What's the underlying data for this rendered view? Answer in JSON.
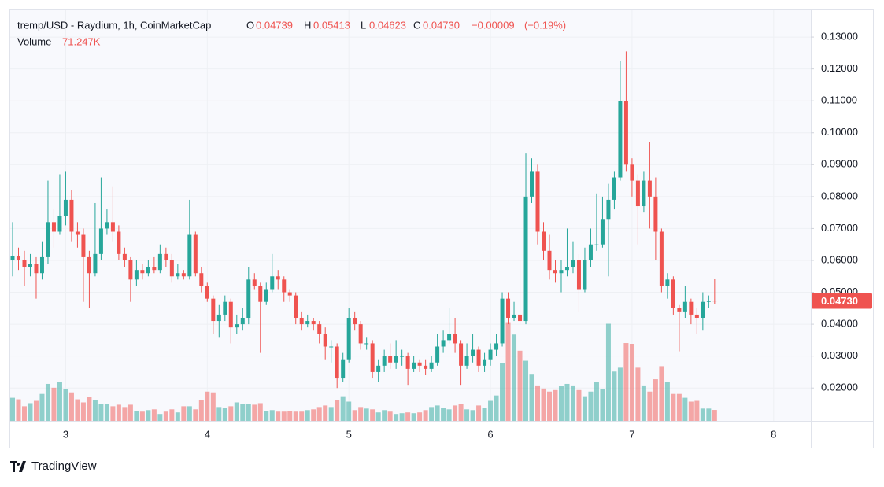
{
  "brand": "TradingView",
  "chart_data": {
    "type": "candlestick",
    "title": "tremp/USD - Raydium, 1h, CoinMarketCap",
    "legend": [
      {
        "key": "O",
        "value": 0.04739,
        "label": "0.04739"
      },
      {
        "key": "H",
        "value": 0.05413,
        "label": "0.05413"
      },
      {
        "key": "L",
        "value": 0.04623,
        "label": "0.04623"
      },
      {
        "key": "C",
        "value": 0.0473,
        "label": "0.04730"
      }
    ],
    "change": {
      "value": -9e-05,
      "label": "−0.00009"
    },
    "change_pct": {
      "value": -0.19,
      "label": "(−0.19%)"
    },
    "volume_title": "Volume",
    "volume_last": {
      "value": 71.247,
      "label": "71.247K"
    },
    "last_price": {
      "value": 0.0473,
      "label": "0.04730"
    },
    "up_color": "#26a69a",
    "down_color": "#ef5350",
    "grid": true,
    "xlim": [
      -0.4,
      135.3
    ],
    "xticks": [
      {
        "value": 9,
        "label": "3"
      },
      {
        "value": 33,
        "label": "4"
      },
      {
        "value": 57,
        "label": "5"
      },
      {
        "value": 81,
        "label": "6"
      },
      {
        "value": 105,
        "label": "7"
      },
      {
        "value": 129,
        "label": "8"
      }
    ],
    "ylim": [
      0.0097,
      0.1384
    ],
    "yticks": [
      {
        "value": 0.02,
        "label": "0.02000"
      },
      {
        "value": 0.03,
        "label": "0.03000"
      },
      {
        "value": 0.04,
        "label": "0.04000"
      },
      {
        "value": 0.05,
        "label": "0.05000"
      },
      {
        "value": 0.06,
        "label": "0.06000"
      },
      {
        "value": 0.07,
        "label": "0.07000"
      },
      {
        "value": 0.08,
        "label": "0.08000"
      },
      {
        "value": 0.09,
        "label": "0.09000"
      },
      {
        "value": 0.1,
        "label": "0.10000"
      },
      {
        "value": 0.11,
        "label": "0.11000"
      },
      {
        "value": 0.12,
        "label": "0.12000"
      },
      {
        "value": 0.13,
        "label": "0.13000"
      }
    ],
    "volume_lim": [
      0,
      1000
    ],
    "open": [
      0.06,
      0.0613,
      0.06,
      0.058,
      0.059,
      0.056,
      0.061,
      0.072,
      0.069,
      0.074,
      0.079,
      0.069,
      0.068,
      0.061,
      0.056,
      0.062,
      0.07,
      0.072,
      0.069,
      0.062,
      0.06,
      0.054,
      0.057,
      0.056,
      0.058,
      0.057,
      0.062,
      0.06,
      0.055,
      0.056,
      0.055,
      0.068,
      0.056,
      0.052,
      0.048,
      0.041,
      0.043,
      0.047,
      0.039,
      0.04,
      0.042,
      0.054,
      0.052,
      0.047,
      0.051,
      0.055,
      0.054,
      0.05,
      0.049,
      0.042,
      0.04,
      0.041,
      0.04,
      0.037,
      0.033,
      0.033,
      0.023,
      0.029,
      0.042,
      0.04,
      0.034,
      0.034,
      0.025,
      0.027,
      0.03,
      0.028,
      0.03,
      0.03,
      0.026,
      0.028,
      0.027,
      0.026,
      0.028,
      0.033,
      0.035,
      0.037,
      0.034,
      0.027,
      0.03,
      0.032,
      0.027,
      0.029,
      0.032,
      0.034,
      0.048,
      0.042,
      0.043,
      0.041,
      0.08,
      0.088,
      0.069,
      0.063,
      0.057,
      0.056,
      0.057,
      0.058,
      0.06,
      0.051,
      0.06,
      0.065,
      0.065,
      0.073,
      0.079,
      0.086,
      0.11,
      0.09,
      0.085,
      0.077,
      0.085,
      0.08,
      0.069,
      0.052,
      0.054,
      0.045,
      0.044,
      0.047,
      0.043,
      0.042,
      0.047,
      0.04739
    ],
    "high": [
      0.072,
      0.064,
      0.063,
      0.062,
      0.061,
      0.066,
      0.085,
      0.076,
      0.087,
      0.088,
      0.082,
      0.072,
      0.07,
      0.063,
      0.078,
      0.086,
      0.076,
      0.083,
      0.071,
      0.064,
      0.061,
      0.06,
      0.059,
      0.06,
      0.061,
      0.065,
      0.064,
      0.062,
      0.059,
      0.057,
      0.079,
      0.069,
      0.058,
      0.053,
      0.049,
      0.046,
      0.049,
      0.048,
      0.043,
      0.045,
      0.058,
      0.056,
      0.053,
      0.053,
      0.062,
      0.057,
      0.055,
      0.051,
      0.05,
      0.044,
      0.043,
      0.042,
      0.041,
      0.039,
      0.035,
      0.034,
      0.031,
      0.045,
      0.044,
      0.041,
      0.036,
      0.035,
      0.029,
      0.032,
      0.034,
      0.035,
      0.032,
      0.031,
      0.03,
      0.029,
      0.029,
      0.03,
      0.037,
      0.038,
      0.045,
      0.042,
      0.035,
      0.034,
      0.037,
      0.033,
      0.031,
      0.034,
      0.037,
      0.05,
      0.05,
      0.047,
      0.06,
      0.0935,
      0.092,
      0.09,
      0.072,
      0.068,
      0.06,
      0.06,
      0.07,
      0.066,
      0.062,
      0.064,
      0.07,
      0.081,
      0.08,
      0.084,
      0.088,
      0.1225,
      0.1255,
      0.092,
      0.087,
      0.088,
      0.097,
      0.086,
      0.07,
      0.056,
      0.055,
      0.046,
      0.052,
      0.048,
      0.045,
      0.05,
      0.049,
      0.05413
    ],
    "low": [
      0.055,
      0.057,
      0.052,
      0.055,
      0.048,
      0.054,
      0.059,
      0.064,
      0.068,
      0.071,
      0.066,
      0.064,
      0.047,
      0.045,
      0.055,
      0.06,
      0.068,
      0.066,
      0.06,
      0.058,
      0.047,
      0.052,
      0.054,
      0.055,
      0.056,
      0.056,
      0.058,
      0.053,
      0.054,
      0.054,
      0.054,
      0.055,
      0.05,
      0.047,
      0.037,
      0.036,
      0.041,
      0.034,
      0.037,
      0.038,
      0.04,
      0.051,
      0.031,
      0.046,
      0.05,
      0.051,
      0.047,
      0.047,
      0.04,
      0.038,
      0.039,
      0.038,
      0.034,
      0.029,
      0.028,
      0.02,
      0.022,
      0.028,
      0.038,
      0.032,
      0.032,
      0.023,
      0.022,
      0.025,
      0.026,
      0.026,
      0.027,
      0.021,
      0.025,
      0.025,
      0.024,
      0.025,
      0.027,
      0.031,
      0.034,
      0.031,
      0.021,
      0.026,
      0.028,
      0.025,
      0.025,
      0.027,
      0.03,
      0.033,
      0.04,
      0.041,
      0.04,
      0.04,
      0.078,
      0.065,
      0.06,
      0.054,
      0.053,
      0.05,
      0.055,
      0.056,
      0.044,
      0.05,
      0.058,
      0.063,
      0.064,
      0.055,
      0.076,
      0.085,
      0.088,
      0.08,
      0.065,
      0.075,
      0.07,
      0.06,
      0.05,
      0.048,
      0.043,
      0.0315,
      0.042,
      0.04,
      0.037,
      0.038,
      0.045,
      0.04623
    ],
    "close": [
      0.0613,
      0.06,
      0.058,
      0.059,
      0.056,
      0.061,
      0.072,
      0.069,
      0.074,
      0.079,
      0.069,
      0.068,
      0.061,
      0.056,
      0.062,
      0.07,
      0.072,
      0.069,
      0.062,
      0.06,
      0.054,
      0.057,
      0.056,
      0.058,
      0.057,
      0.062,
      0.06,
      0.055,
      0.056,
      0.055,
      0.068,
      0.056,
      0.052,
      0.048,
      0.041,
      0.043,
      0.047,
      0.039,
      0.04,
      0.042,
      0.054,
      0.052,
      0.047,
      0.051,
      0.055,
      0.054,
      0.05,
      0.049,
      0.042,
      0.04,
      0.041,
      0.04,
      0.037,
      0.033,
      0.033,
      0.023,
      0.029,
      0.042,
      0.04,
      0.034,
      0.034,
      0.025,
      0.027,
      0.03,
      0.028,
      0.03,
      0.03,
      0.026,
      0.028,
      0.027,
      0.026,
      0.028,
      0.033,
      0.035,
      0.037,
      0.034,
      0.027,
      0.03,
      0.032,
      0.027,
      0.029,
      0.032,
      0.034,
      0.048,
      0.042,
      0.043,
      0.041,
      0.08,
      0.088,
      0.069,
      0.063,
      0.057,
      0.056,
      0.057,
      0.058,
      0.06,
      0.051,
      0.06,
      0.065,
      0.065,
      0.073,
      0.079,
      0.086,
      0.11,
      0.09,
      0.085,
      0.077,
      0.085,
      0.08,
      0.069,
      0.052,
      0.054,
      0.045,
      0.044,
      0.047,
      0.043,
      0.042,
      0.047,
      0.0474,
      0.0473
    ],
    "volume": [
      150,
      140,
      95,
      115,
      130,
      175,
      240,
      215,
      250,
      205,
      185,
      140,
      120,
      155,
      135,
      110,
      110,
      95,
      105,
      90,
      105,
      65,
      60,
      70,
      75,
      45,
      60,
      75,
      55,
      95,
      95,
      75,
      135,
      190,
      185,
      90,
      85,
      95,
      120,
      110,
      110,
      105,
      115,
      65,
      70,
      60,
      60,
      65,
      60,
      60,
      70,
      75,
      90,
      100,
      90,
      135,
      160,
      125,
      70,
      90,
      80,
      75,
      55,
      70,
      60,
      45,
      50,
      55,
      50,
      55,
      70,
      90,
      100,
      85,
      75,
      100,
      110,
      75,
      70,
      100,
      85,
      130,
      165,
      375,
      640,
      560,
      455,
      390,
      300,
      230,
      210,
      190,
      200,
      225,
      240,
      230,
      200,
      160,
      190,
      250,
      205,
      630,
      320,
      345,
      505,
      500,
      345,
      230,
      190,
      270,
      355,
      255,
      175,
      175,
      150,
      125,
      130,
      80,
      80,
      71.247
    ]
  }
}
